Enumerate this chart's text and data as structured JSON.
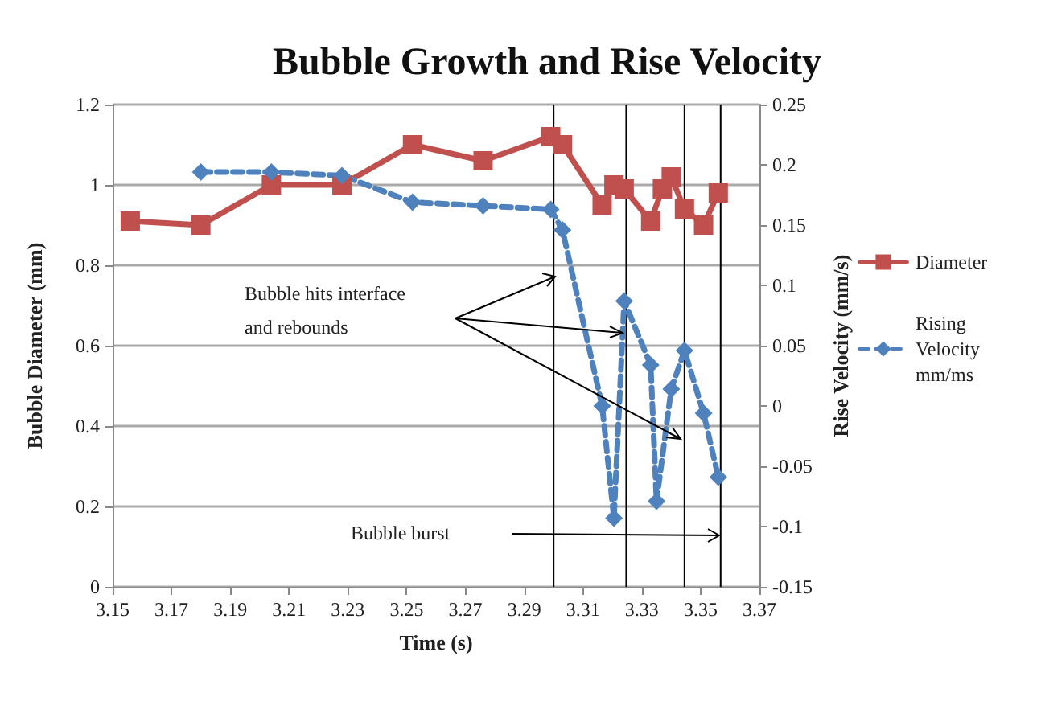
{
  "chart_data": {
    "type": "line",
    "title": "Bubble Growth and Rise Velocity",
    "xlabel": "Time (s)",
    "ylabel": "Bubble Diameter (mm)",
    "y2label": "Rise Velocity (mm/s)",
    "xlim": [
      3.15,
      3.37
    ],
    "xticks": [
      3.15,
      3.17,
      3.19,
      3.21,
      3.23,
      3.25,
      3.27,
      3.29,
      3.31,
      3.33,
      3.35,
      3.37
    ],
    "ylim": [
      0,
      1.2
    ],
    "yticks": [
      0,
      0.2,
      0.4,
      0.6,
      0.8,
      1,
      1.2
    ],
    "y2lim": [
      -0.15,
      0.25
    ],
    "y2ticks": [
      -0.15,
      -0.1,
      -0.05,
      0,
      0.05,
      0.1,
      0.15,
      0.2,
      0.25
    ],
    "grid": "y",
    "legend": "right",
    "series": [
      {
        "name": "Diameter",
        "color": "#c0504d",
        "marker": "square",
        "line_style": "solid",
        "x": [
          3.156,
          3.18,
          3.204,
          3.228,
          3.252,
          3.276,
          3.299,
          3.303,
          3.3165,
          3.3205,
          3.324,
          3.333,
          3.337,
          3.34,
          3.3445,
          3.351,
          3.356
        ],
        "values": [
          0.91,
          0.9,
          1.0,
          1.0,
          1.1,
          1.06,
          1.12,
          1.1,
          0.95,
          1.0,
          0.99,
          0.91,
          0.99,
          1.02,
          0.94,
          0.9,
          0.98
        ]
      },
      {
        "name": "Rising Velocity mm/ms",
        "color": "#4f81bd",
        "marker": "diamond",
        "line_style": "dashed",
        "axis": "y2",
        "x": [
          3.18,
          3.204,
          3.228,
          3.252,
          3.276,
          3.299,
          3.303,
          3.3165,
          3.3205,
          3.324,
          3.333,
          3.335,
          3.34,
          3.3445,
          3.351,
          3.356
        ],
        "values": [
          0.194,
          0.194,
          0.191,
          0.169,
          0.166,
          0.163,
          0.146,
          0.0,
          -0.093,
          0.087,
          0.034,
          -0.079,
          0.014,
          0.046,
          -0.006,
          -0.059
        ]
      }
    ],
    "ref_lines": [
      {
        "axis": "x",
        "value": 3.3,
        "color": "#000000"
      },
      {
        "axis": "x",
        "value": 3.3247,
        "color": "#000000"
      },
      {
        "axis": "x",
        "value": 3.3445,
        "color": "#000000"
      },
      {
        "axis": "x",
        "value": 3.3568,
        "color": "#000000"
      }
    ],
    "annotations": [
      "Bubble hits interface\nand rebounds",
      "Bubble burst"
    ]
  }
}
